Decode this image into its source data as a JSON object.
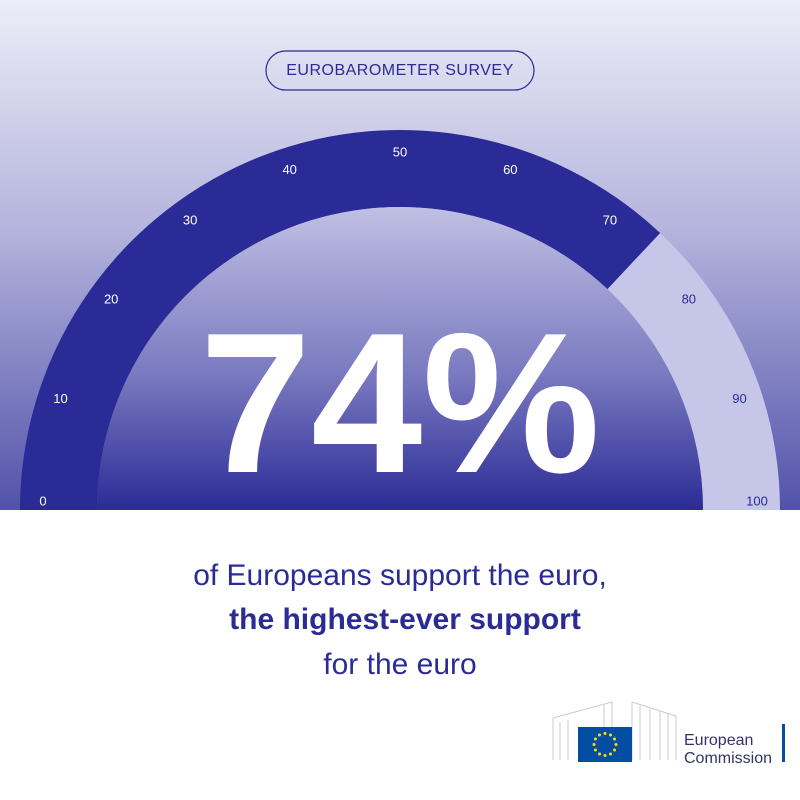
{
  "chart_data": {
    "type": "gauge",
    "title": "EUROBAROMETER SURVEY",
    "values": [
      74
    ],
    "value_labels": [
      "74%"
    ],
    "ylim": [
      0,
      100
    ],
    "yticks": [
      0,
      10,
      20,
      30,
      40,
      50,
      60,
      70,
      80,
      90,
      100
    ],
    "color": "#2b2b97",
    "track_color": "#c6c6e8",
    "caption": [
      "of Europeans support the euro,",
      "the highest-ever support",
      "for the euro"
    ]
  },
  "logo": {
    "line1": "European",
    "line2": "Commission"
  }
}
